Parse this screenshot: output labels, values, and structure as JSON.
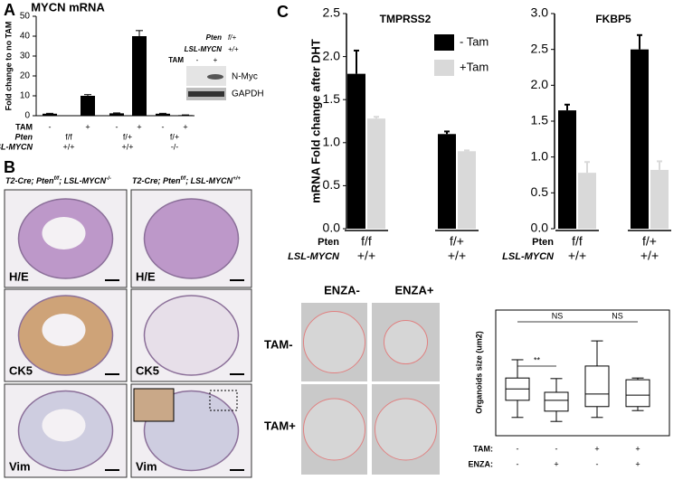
{
  "panel_letters": [
    "A",
    "B",
    "C"
  ],
  "chart_data": [
    {
      "type": "bar",
      "title": "MYCN mRNA",
      "ylabel": "Fold change to no TAM",
      "ylim": [
        0,
        50
      ],
      "yticks": [
        0,
        10,
        20,
        30,
        40,
        50
      ],
      "color": "#000000",
      "values": [
        1,
        10,
        1.2,
        40,
        1,
        0.3
      ],
      "errors": [
        0.2,
        0.6,
        0.2,
        2.8,
        0.2,
        0.1
      ],
      "rows": [
        {
          "name": "TAM",
          "labels": [
            "-",
            "+",
            "-",
            "+",
            "-",
            "+"
          ]
        },
        {
          "name": "Pten",
          "labels": [
            "f/f",
            "f/+",
            "f/+"
          ]
        },
        {
          "name": "LSL-MYCN",
          "labels": [
            "+/+",
            "+/+",
            "-/-"
          ]
        }
      ]
    },
    {
      "type": "grouped_bar",
      "title": "TMPRSS2",
      "ylabel": "mRNA Fold change after DHT",
      "ylim": [
        0,
        2.5
      ],
      "yticks": [
        {
          "value": 0,
          "label": "0.0"
        },
        {
          "value": 0.5,
          "label": "0.5"
        },
        {
          "value": 1,
          "label": "1.0"
        },
        {
          "value": 1.5,
          "label": "1.5"
        },
        {
          "value": 2,
          "label": "2.0"
        },
        {
          "value": 2.5,
          "label": "2.5"
        }
      ],
      "legend": "upper right",
      "series": [
        {
          "name": "- Tam",
          "color": "#000000",
          "values": [
            1.8,
            1.1
          ],
          "errors": [
            0.27,
            0.03
          ]
        },
        {
          "name": "+Tam",
          "color": "#d9d9d9",
          "values": [
            1.28,
            0.9
          ],
          "errors": [
            0.02,
            0.01
          ]
        }
      ],
      "rows": [
        {
          "name": "Pten",
          "labels": [
            "f/f",
            "f/+"
          ]
        },
        {
          "name": "LSL-MYCN",
          "labels": [
            "+/+",
            "+/+"
          ]
        }
      ]
    },
    {
      "type": "grouped_bar",
      "title": "FKBP5",
      "ylim": [
        0,
        3
      ],
      "yticks": [
        {
          "value": 0,
          "label": "0.0"
        },
        {
          "value": 0.5,
          "label": "0.5"
        },
        {
          "value": 1,
          "label": "1.0"
        },
        {
          "value": 1.5,
          "label": "1.5"
        },
        {
          "value": 2,
          "label": "2.0"
        },
        {
          "value": 2.5,
          "label": "2.5"
        },
        {
          "value": 3,
          "label": "3.0"
        }
      ],
      "series": [
        {
          "color": "#000000",
          "values": [
            1.65,
            2.5
          ],
          "errors": [
            0.08,
            0.2
          ]
        },
        {
          "color": "#d9d9d9",
          "values": [
            0.78,
            0.82
          ],
          "errors": [
            0.15,
            0.12
          ]
        }
      ],
      "rows": [
        {
          "name": "Pten",
          "labels": [
            "f/f",
            "f/+"
          ]
        },
        {
          "name": "LSL-MYCN",
          "labels": [
            "+/+",
            "+/+"
          ]
        }
      ]
    },
    {
      "type": "box",
      "ylabel": "Organoids size (um2)",
      "ylim": [
        0,
        22
      ],
      "color": "#000000",
      "min": [
        3.2,
        2.5,
        3.2,
        4.4
      ],
      "q1": [
        6.2,
        4.3,
        5.1,
        5.1
      ],
      "median": [
        8.2,
        6.2,
        7.3,
        7.1
      ],
      "q3": [
        10.1,
        7.6,
        12.2,
        9.8
      ],
      "max": [
        13.3,
        10,
        16.6,
        10.1
      ],
      "annotations": [
        "NS",
        "NS",
        "**"
      ],
      "rows": [
        {
          "name": "TAM:",
          "labels": [
            "-",
            "-",
            "+",
            "+"
          ]
        },
        {
          "name": "ENZA:",
          "labels": [
            "-",
            "+",
            "-",
            "+"
          ]
        }
      ]
    }
  ],
  "blot": {
    "rows": [
      {
        "name": "Pten",
        "value": "f/+"
      },
      {
        "name": "LSL-MYCN",
        "value": "+/+"
      }
    ],
    "tam": {
      "name": "TAM",
      "labels": [
        "-",
        "+"
      ]
    },
    "bands": [
      "N-Myc",
      "GAPDH"
    ]
  },
  "histology": {
    "genotypes": [
      [
        "T2-Cre; Pten",
        "f/f",
        "; LSL-MYCN",
        "-/-"
      ],
      [
        "T2-Cre; Pten",
        "f/f",
        "; LSL-MYCN",
        "+/+"
      ]
    ],
    "stains": [
      "H/E",
      "CK5",
      "Vim"
    ]
  },
  "organoids": {
    "columns": [
      "ENZA-",
      "ENZA+"
    ],
    "rows": [
      "TAM-",
      "TAM+"
    ]
  }
}
